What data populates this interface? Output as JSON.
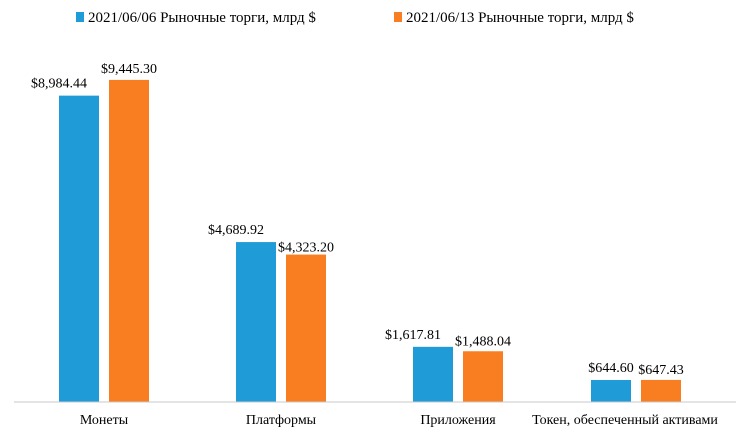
{
  "chart_data": {
    "type": "bar",
    "title": "",
    "xlabel": "",
    "ylabel": "",
    "ylim": [
      0,
      10000
    ],
    "grid": false,
    "legend_position": "top",
    "categories": [
      "Монеты",
      "Платформы",
      "Приложения",
      "Токен, обеспеченный активами"
    ],
    "series": [
      {
        "name": "2021/06/06  Рыночные торги, млрд $",
        "color": "#1f9bd8",
        "values": [
          8984.44,
          4689.92,
          1617.81,
          644.6
        ],
        "labels": [
          "$8,984.44",
          "$4,689.92",
          "$1,617.81",
          "$644.60"
        ]
      },
      {
        "name": "2021/06/13  Рыночные торги, млрд $",
        "color": "#f97e21",
        "values": [
          9445.3,
          4323.2,
          1488.04,
          647.43
        ],
        "labels": [
          "$9,445.30",
          "$4,323.20",
          "$1,488.04",
          "$647.43"
        ]
      }
    ]
  }
}
